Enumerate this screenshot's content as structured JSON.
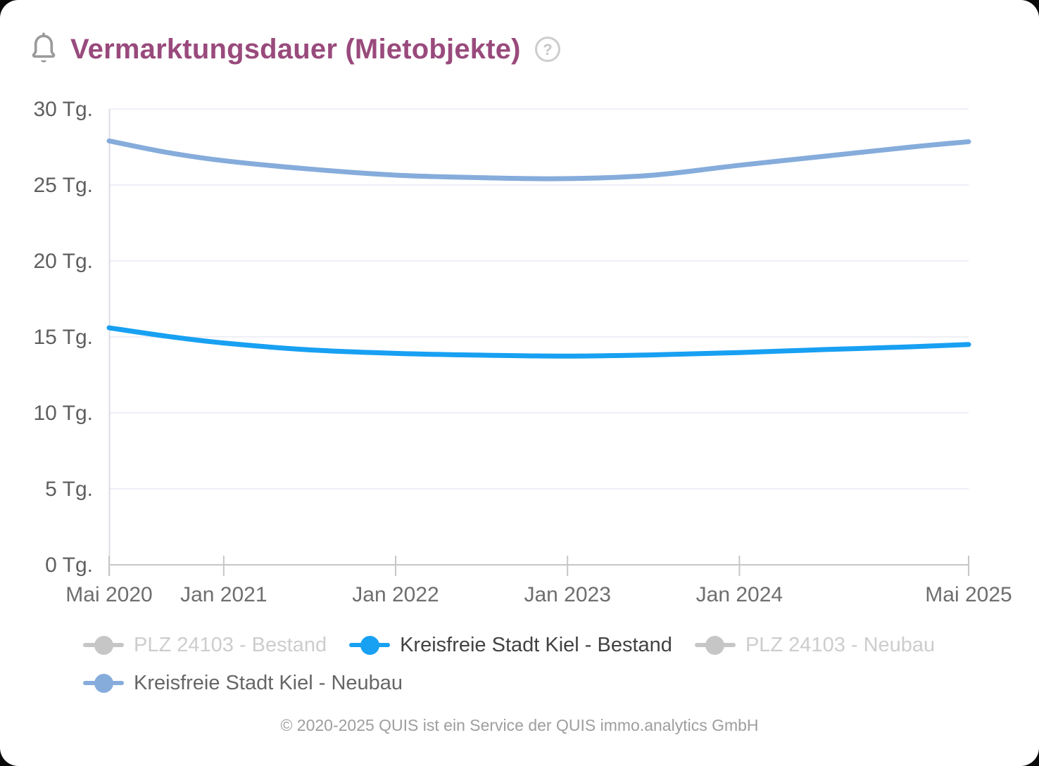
{
  "header": {
    "title": "Vermarktungsdauer (Mietobjekte)",
    "bell_icon": "notification-bell",
    "help_icon": "help-circle",
    "help_glyph": "?"
  },
  "colors": {
    "title": "#994a7c",
    "bestand_blue": "#18a0f2",
    "neubau_blue": "#85acdb",
    "disabled_gray": "#c6c6c6",
    "gridline": "#e9e9f4",
    "axis_line": "#c6c6c6",
    "y_axis_line": "#dcdce6",
    "axis_label": "#6b6b6b"
  },
  "chart_data": {
    "type": "line",
    "title": "Vermarktungsdauer (Mietobjekte)",
    "xlabel": "",
    "ylabel": "Tg.",
    "ylim": [
      0,
      30
    ],
    "grid": true,
    "legend_position": "bottom",
    "y_tick_values": [
      30,
      25,
      20,
      15,
      10,
      5,
      0
    ],
    "y_ticks": [
      "30 Tg.",
      "25 Tg.",
      "20 Tg.",
      "15 Tg.",
      "10 Tg.",
      "5 Tg.",
      "0 Tg."
    ],
    "x_ticks": [
      "Mai 2020",
      "Jan 2021",
      "Jan 2022",
      "Jan 2023",
      "Jan 2024",
      "Mai 2025"
    ],
    "x_tick_months": [
      0,
      8,
      20,
      32,
      44,
      60
    ],
    "x_range_months": [
      0,
      60
    ],
    "series": [
      {
        "name": "PLZ 24103 - Bestand",
        "color": "#c6c6c6",
        "visible": false,
        "points": []
      },
      {
        "name": "Kreisfreie Stadt Kiel - Bestand",
        "color": "#18a0f2",
        "visible": true,
        "points": [
          [
            0,
            15.6
          ],
          [
            4,
            15.05
          ],
          [
            8,
            14.6
          ],
          [
            14,
            14.15
          ],
          [
            20,
            13.92
          ],
          [
            26,
            13.8
          ],
          [
            32,
            13.74
          ],
          [
            38,
            13.82
          ],
          [
            44,
            13.97
          ],
          [
            50,
            14.17
          ],
          [
            56,
            14.35
          ],
          [
            60,
            14.5
          ]
        ]
      },
      {
        "name": "PLZ 24103 - Neubau",
        "color": "#c6c6c6",
        "visible": false,
        "points": []
      },
      {
        "name": "Kreisfreie Stadt Kiel - Neubau",
        "color": "#85acdb",
        "visible": true,
        "points": [
          [
            0,
            27.9
          ],
          [
            4,
            27.15
          ],
          [
            8,
            26.6
          ],
          [
            14,
            26.05
          ],
          [
            20,
            25.65
          ],
          [
            26,
            25.48
          ],
          [
            32,
            25.42
          ],
          [
            38,
            25.65
          ],
          [
            44,
            26.3
          ],
          [
            50,
            26.9
          ],
          [
            56,
            27.5
          ],
          [
            60,
            27.85
          ]
        ]
      }
    ]
  },
  "legend": {
    "items": [
      {
        "label": "PLZ 24103 - Bestand",
        "marker_color": "#c6c6c6",
        "text_color": "#cdcdcd",
        "active": false,
        "series_index": 0
      },
      {
        "label": "Kreisfreie Stadt Kiel - Bestand",
        "marker_color": "#18a0f2",
        "text_color": "#424242",
        "active": true,
        "series_index": 1
      },
      {
        "label": "PLZ 24103 - Neubau",
        "marker_color": "#c6c6c6",
        "text_color": "#cdcdcd",
        "active": false,
        "series_index": 2
      },
      {
        "label": "Kreisfreie Stadt Kiel - Neubau",
        "marker_color": "#85acdb",
        "text_color": "#666666",
        "active": true,
        "series_index": 3
      }
    ]
  },
  "footer": {
    "copyright": "© 2020-2025 QUIS ist ein Service der QUIS immo.analytics GmbH"
  }
}
